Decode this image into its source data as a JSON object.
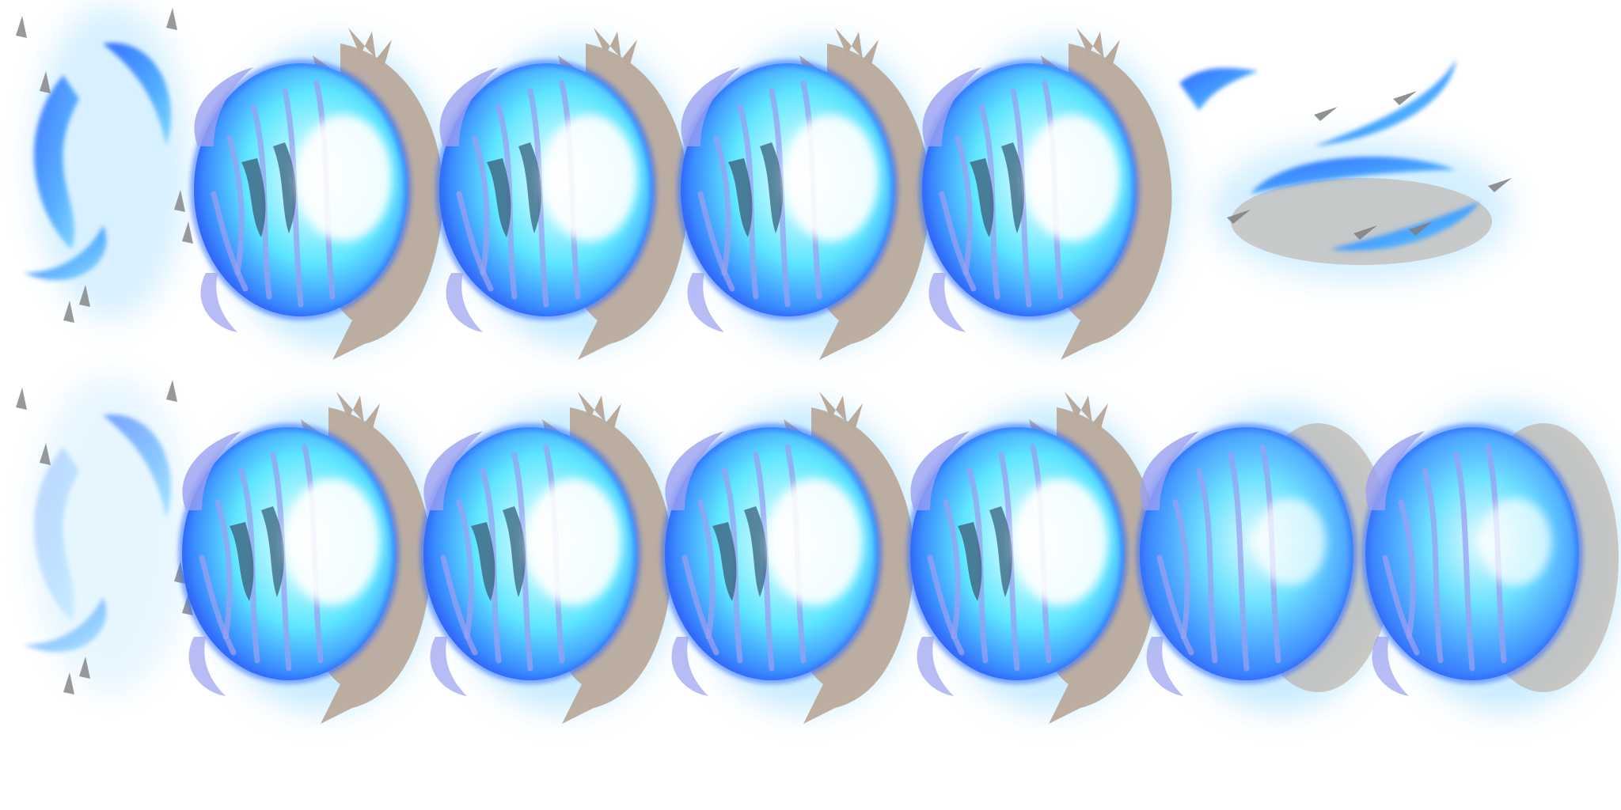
{
  "sprite_sheet": {
    "background": "#ffffff",
    "palette": {
      "glow": "#9fdcff",
      "orb_deep": "#2f6bff",
      "orb_core": "#5fe6ff",
      "highlight": "#ffffff",
      "cloth": "#b9aa9c",
      "shadow": "#3f6a86",
      "violet_edge": "#9aa0f0",
      "debris": "#7f7f7f"
    },
    "rows": [
      {
        "frames": [
          {
            "kind": "swirl-start"
          },
          {
            "kind": "orb"
          },
          {
            "kind": "orb"
          },
          {
            "kind": "orb"
          },
          {
            "kind": "orb"
          },
          {
            "kind": "burst-ring"
          }
        ]
      },
      {
        "frames": [
          {
            "kind": "swirl-fade"
          },
          {
            "kind": "orb"
          },
          {
            "kind": "orb"
          },
          {
            "kind": "orb"
          },
          {
            "kind": "orb"
          },
          {
            "kind": "orb-soft"
          },
          {
            "kind": "orb-soft"
          }
        ]
      }
    ]
  }
}
